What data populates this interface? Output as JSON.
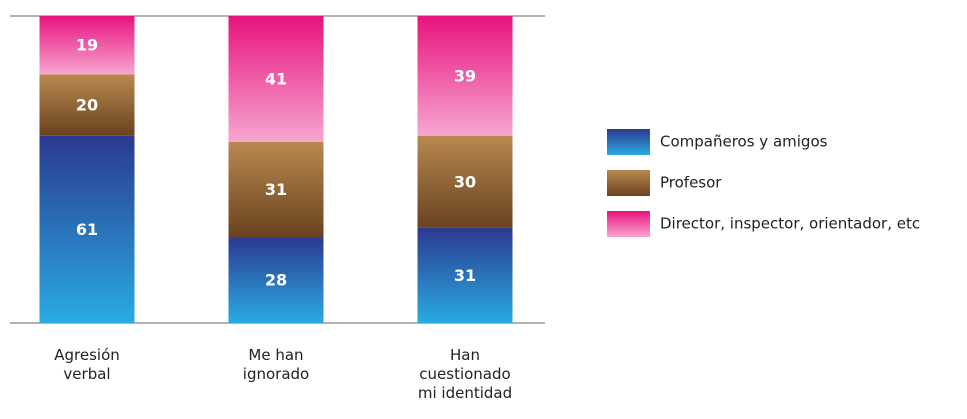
{
  "chart_data": {
    "type": "stacked_bar",
    "categories": [
      "Agresión verbal",
      "Me han ignorado",
      "Han cuestionado mi identidad"
    ],
    "series": [
      {
        "name": "Compañeros y amigos",
        "color": [
          "#2b3990",
          "#29abe2"
        ],
        "values": [
          61,
          28,
          31
        ]
      },
      {
        "name": "Profesor",
        "color": [
          "#b8894f",
          "#6a4220"
        ],
        "values": [
          20,
          31,
          30
        ]
      },
      {
        "name": "Director, inspector, orientador, etc",
        "color": [
          "#e8137d",
          "#f7a6d0"
        ],
        "values": [
          19,
          41,
          39
        ]
      }
    ],
    "ylim": [
      0,
      100
    ],
    "legend": "right"
  }
}
